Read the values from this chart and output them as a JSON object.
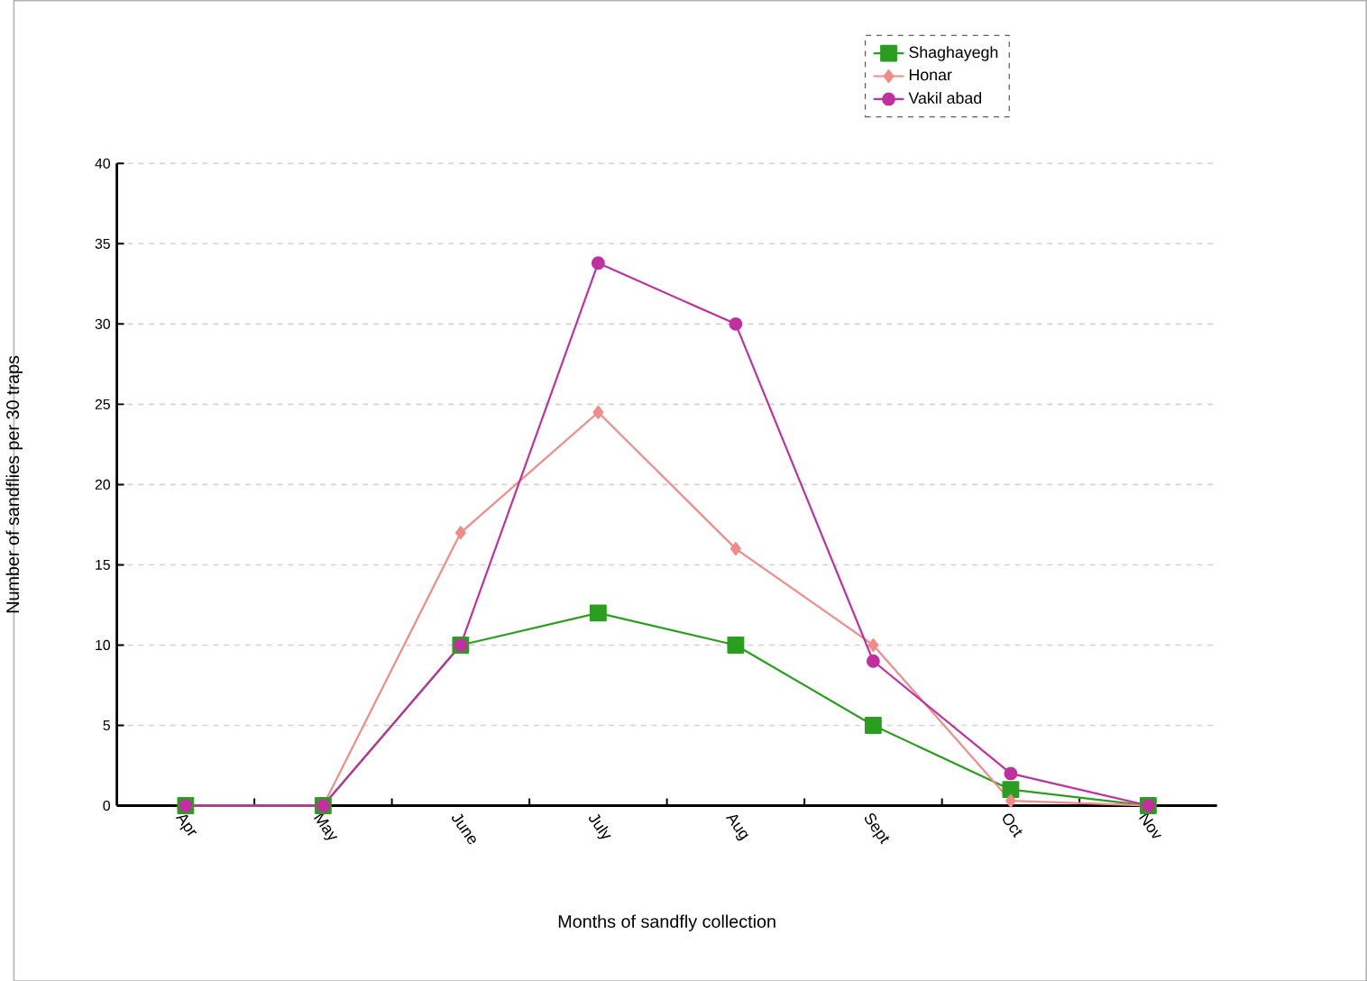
{
  "chart_data": {
    "type": "line",
    "xlabel": "Months of sandfly collection",
    "ylabel": "Number of sandflies per 30 traps",
    "categories": [
      "Apr",
      "May",
      "June",
      "July",
      "Aug",
      "Sept",
      "Oct",
      "Nov"
    ],
    "series": [
      {
        "name": "Shaghayegh",
        "color": "#2a9e1e",
        "marker": "square",
        "values": [
          0,
          0,
          10,
          12,
          10,
          5,
          1,
          0
        ]
      },
      {
        "name": "Honar",
        "color": "#f28a8a",
        "marker": "diamond",
        "values": [
          0,
          0,
          17,
          24.5,
          16,
          10,
          0.3,
          0
        ]
      },
      {
        "name": "Vakil abad",
        "color": "#c0309e",
        "marker": "circle",
        "values": [
          0,
          0,
          10,
          33.8,
          30,
          9,
          2,
          0
        ]
      }
    ],
    "ylim": [
      0,
      40
    ],
    "yticks": [
      0,
      5,
      10,
      15,
      20,
      25,
      30,
      35,
      40
    ],
    "grid": "y",
    "legend": "top right",
    "line_style": "solid"
  }
}
